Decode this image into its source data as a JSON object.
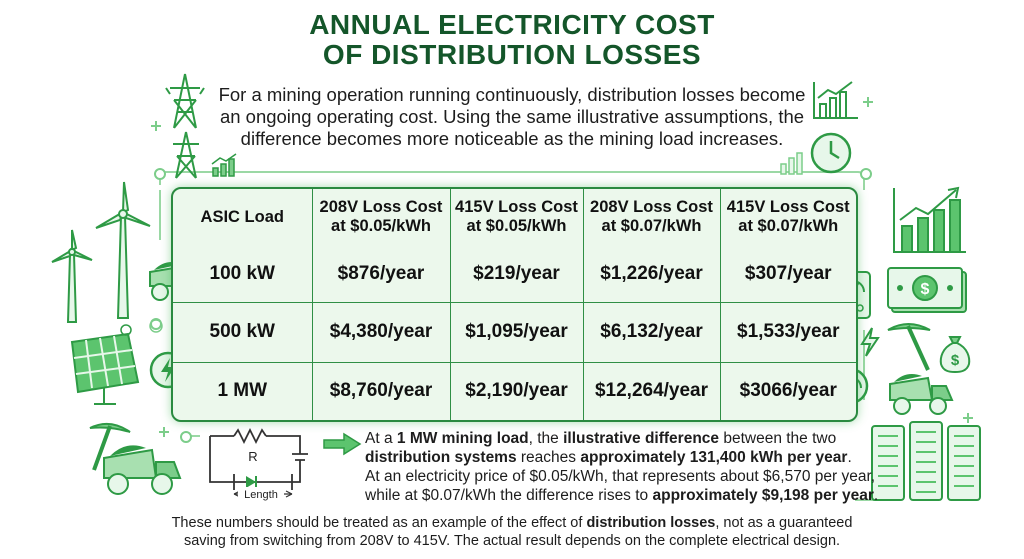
{
  "title": {
    "line1": "ANNUAL ELECTRICITY COST",
    "line2": "OF DISTRIBUTION LOSSES"
  },
  "intro": "For a mining operation running continuously, distribution losses become an ongoing operating cost. Using the same illustrative assumptions, the difference becomes more noticeable as the mining load increases.",
  "table": {
    "headers": [
      [
        "ASIC Load"
      ],
      [
        "208V Loss Cost",
        "at $0.05/kWh"
      ],
      [
        "415V Loss Cost",
        "at $0.05/kWh"
      ],
      [
        "208V Loss Cost",
        "at $0.07/kWh"
      ],
      [
        "415V Loss Cost",
        "at $0.07/kWh"
      ]
    ],
    "rows": [
      [
        "100 kW",
        "$876/year",
        "$219/year",
        "$1,226/year",
        "$307/year"
      ],
      [
        "500 kW",
        "$4,380/year",
        "$1,095/year",
        "$6,132/year",
        "$1,533/year"
      ],
      [
        "1 MW",
        "$8,760/year",
        "$2,190/year",
        "$12,264/year",
        "$3066/year"
      ]
    ]
  },
  "note": {
    "l1a": "At a ",
    "l1b": "1 MW mining load",
    "l1c": ", the ",
    "l1d": "illustrative difference",
    "l1e": " between the two",
    "l2a": "distribution systems",
    "l2b": " reaches ",
    "l2c": "approximately 131,400 kWh per year",
    "l2d": ".",
    "l3": "At an electricity price of $0.05/kWh, that represents about $6,570 per year,",
    "l4a": "while at $0.07/kWh the difference rises to ",
    "l4b": "approximately $9,198 per year",
    "l4c": "."
  },
  "circuit": {
    "resistor_label": "R",
    "length_label": "Length"
  },
  "footer": {
    "l1a": "These numbers should be treated as an example of the effect of ",
    "l1b": "distribution losses",
    "l1c": ", not as a guaranteed",
    "l2": "saving from switching from 208V to 415V. The actual result depends on the complete electrical design."
  },
  "colors": {
    "title": "#14562a",
    "accent": "#2a8a40",
    "table_bg": "#ecf8ec",
    "icon_green": "#5cc46e"
  },
  "icons": [
    "transmission-tower-icon",
    "wind-turbine-icon",
    "solar-panel-icon",
    "mining-truck-icon",
    "pickaxe-icon",
    "money-bag-icon",
    "lightning-icon",
    "clock-icon",
    "chart-icon",
    "cash-icon",
    "meter-icon",
    "gauge-icon",
    "server-rack-icon",
    "arrow-icon"
  ]
}
